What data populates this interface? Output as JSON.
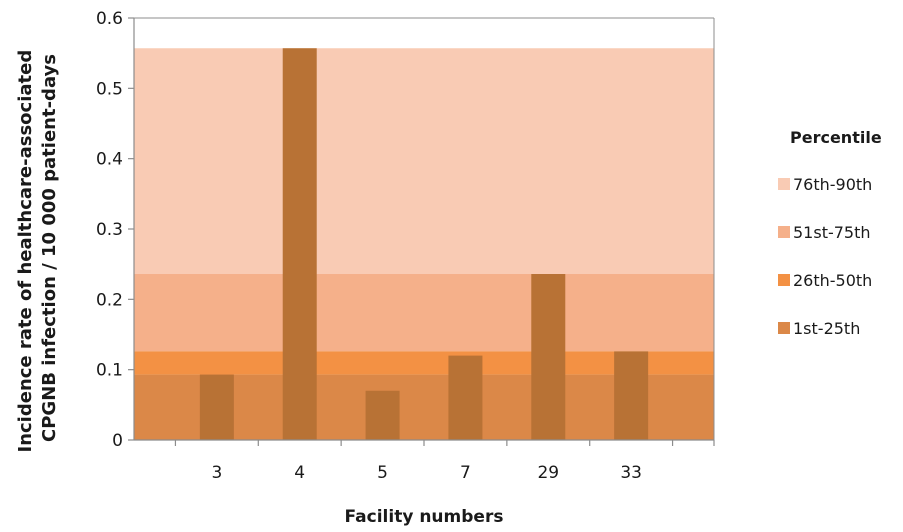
{
  "chart_data": {
    "type": "bar",
    "xlabel": "Facility numbers",
    "ylabel_lines": [
      "Incidence rate of healthcare-associated",
      "CPGNB infection / 10 000 patient-days"
    ],
    "categories": [
      "3",
      "4",
      "5",
      "7",
      "29",
      "33"
    ],
    "values": [
      0.093,
      0.557,
      0.07,
      0.12,
      0.236,
      0.126
    ],
    "bar_color": "#b87235",
    "ylim": [
      0,
      0.6
    ],
    "yticks": [
      0,
      0.1,
      0.2,
      0.3,
      0.4,
      0.5,
      0.6
    ],
    "ytick_labels": [
      "0",
      "0.1",
      "0.2",
      "0.3",
      "0.4",
      "0.5",
      "0.6"
    ],
    "grid": false,
    "percentile_bands": [
      {
        "label": "76th-90th",
        "from": 0.236,
        "to": 0.557,
        "color": "#f9cbb4"
      },
      {
        "label": "51st-75th",
        "from": 0.126,
        "to": 0.236,
        "color": "#f5b08a"
      },
      {
        "label": "26th-50th",
        "from": 0.093,
        "to": 0.126,
        "color": "#f39144"
      },
      {
        "label": "1st-25th",
        "from": 0,
        "to": 0.093,
        "color": "#db8848"
      }
    ],
    "legend": {
      "title": "Percentile",
      "position": "right"
    }
  }
}
